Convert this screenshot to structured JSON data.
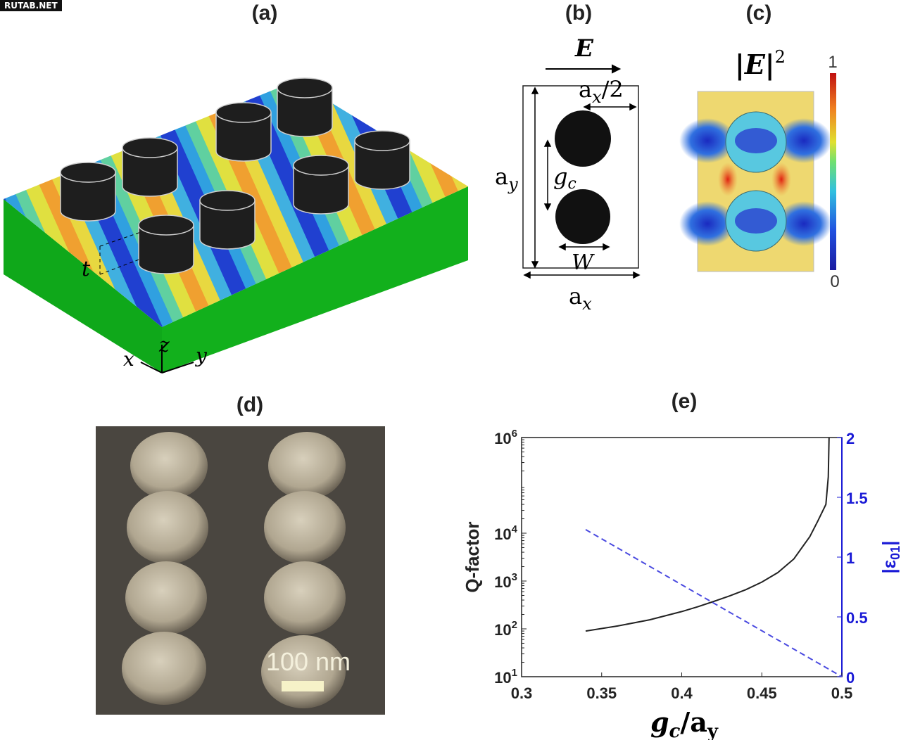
{
  "watermark": "RUTAB.NET",
  "panels": {
    "a": {
      "label": "(a)",
      "t": "t",
      "axis_x": "x",
      "axis_y": "y",
      "axis_z": "z"
    },
    "b": {
      "label": "(b)",
      "E": "E",
      "ax_half": "a",
      "ax_half_sub": "x",
      "ax_half_suffix": "/2",
      "ay": "a",
      "ay_sub": "y",
      "gc": "g",
      "gc_sub": "c",
      "W": "W",
      "ax": "a",
      "ax_sub": "x"
    },
    "c": {
      "label": "(c)",
      "title": "|E|",
      "title_sup": "2",
      "cbar_max": "1",
      "cbar_min": "0"
    },
    "d": {
      "label": "(d)",
      "scale_bar": "100 nm"
    },
    "e": {
      "label": "(e)"
    }
  },
  "colors": {
    "slab_green": "#0fa81a",
    "pillar": "#1e1e1e",
    "sem_bg": "#4a4640",
    "q_line": "#222222",
    "eps_line": "#4a4ae0",
    "right_axis": "#1a1ad6"
  },
  "chart_data": {
    "type": "line",
    "xlabel": "g",
    "xlabel_sub1": "c",
    "xlabel_mid": "/a",
    "xlabel_sub2": "y",
    "ylabel": "Q-factor",
    "y2label": "|ε",
    "y2label_sub": "01",
    "y2label_end": "|",
    "xlim": [
      0.3,
      0.5
    ],
    "ylim": [
      10,
      1000000
    ],
    "yscale": "log",
    "y2lim": [
      0,
      2
    ],
    "x_ticks": [
      "0.3",
      "0.35",
      "0.4",
      "0.45",
      "0.5"
    ],
    "y_ticks": [
      {
        "base": "10",
        "exp": "1"
      },
      {
        "base": "10",
        "exp": "2"
      },
      {
        "base": "10",
        "exp": "3"
      },
      {
        "base": "10",
        "exp": "4"
      },
      {
        "base": "10",
        "exp": "6"
      }
    ],
    "y2_ticks": [
      "0",
      "0.5",
      "1",
      "1.5",
      "2"
    ],
    "series": [
      {
        "name": "Q-factor",
        "axis": "left",
        "style": "solid",
        "x": [
          0.34,
          0.36,
          0.38,
          0.4,
          0.41,
          0.42,
          0.43,
          0.44,
          0.45,
          0.46,
          0.47,
          0.48,
          0.485,
          0.49,
          0.4915,
          0.492
        ],
        "y": [
          90,
          115,
          155,
          230,
          290,
          375,
          490,
          660,
          950,
          1500,
          2900,
          8500,
          18000,
          40000,
          150000,
          1000000
        ]
      },
      {
        "name": "|ε01|",
        "axis": "right",
        "style": "dashed",
        "x": [
          0.34,
          0.5
        ],
        "y": [
          1.23,
          0.0
        ]
      }
    ]
  }
}
